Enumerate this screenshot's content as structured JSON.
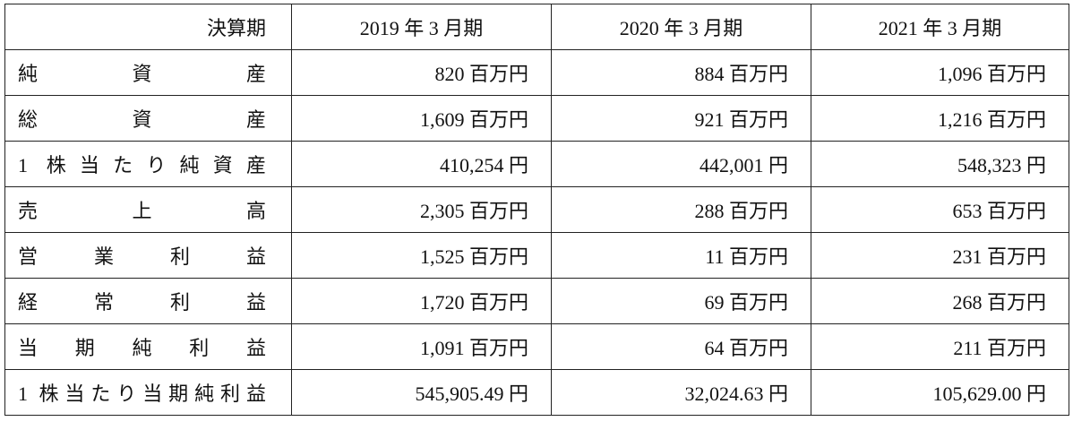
{
  "table": {
    "header": [
      "決算期",
      "2019 年 3 月期",
      "2020 年 3 月期",
      "2021 年 3 月期"
    ],
    "rows": [
      [
        "純資産",
        "820 百万円",
        "884 百万円",
        "1,096 百万円"
      ],
      [
        "総資産",
        "1,609 百万円",
        "921 百万円",
        "1,216 百万円"
      ],
      [
        "1 株当たり純資産",
        "410,254 円",
        "442,001 円",
        "548,323 円"
      ],
      [
        "売上高",
        "2,305 百万円",
        "288 百万円",
        "653 百万円"
      ],
      [
        "営業利益",
        "1,525 百万円",
        "11 百万円",
        "231 百万円"
      ],
      [
        "経常利益",
        "1,720 百万円",
        "69 百万円",
        "268 百万円"
      ],
      [
        "当期純利益",
        "1,091 百万円",
        "64 百万円",
        "211 百万円"
      ],
      [
        "1 株当たり当期純利益",
        "545,905.49 円",
        "32,024.63 円",
        "105,629.00 円"
      ]
    ]
  }
}
